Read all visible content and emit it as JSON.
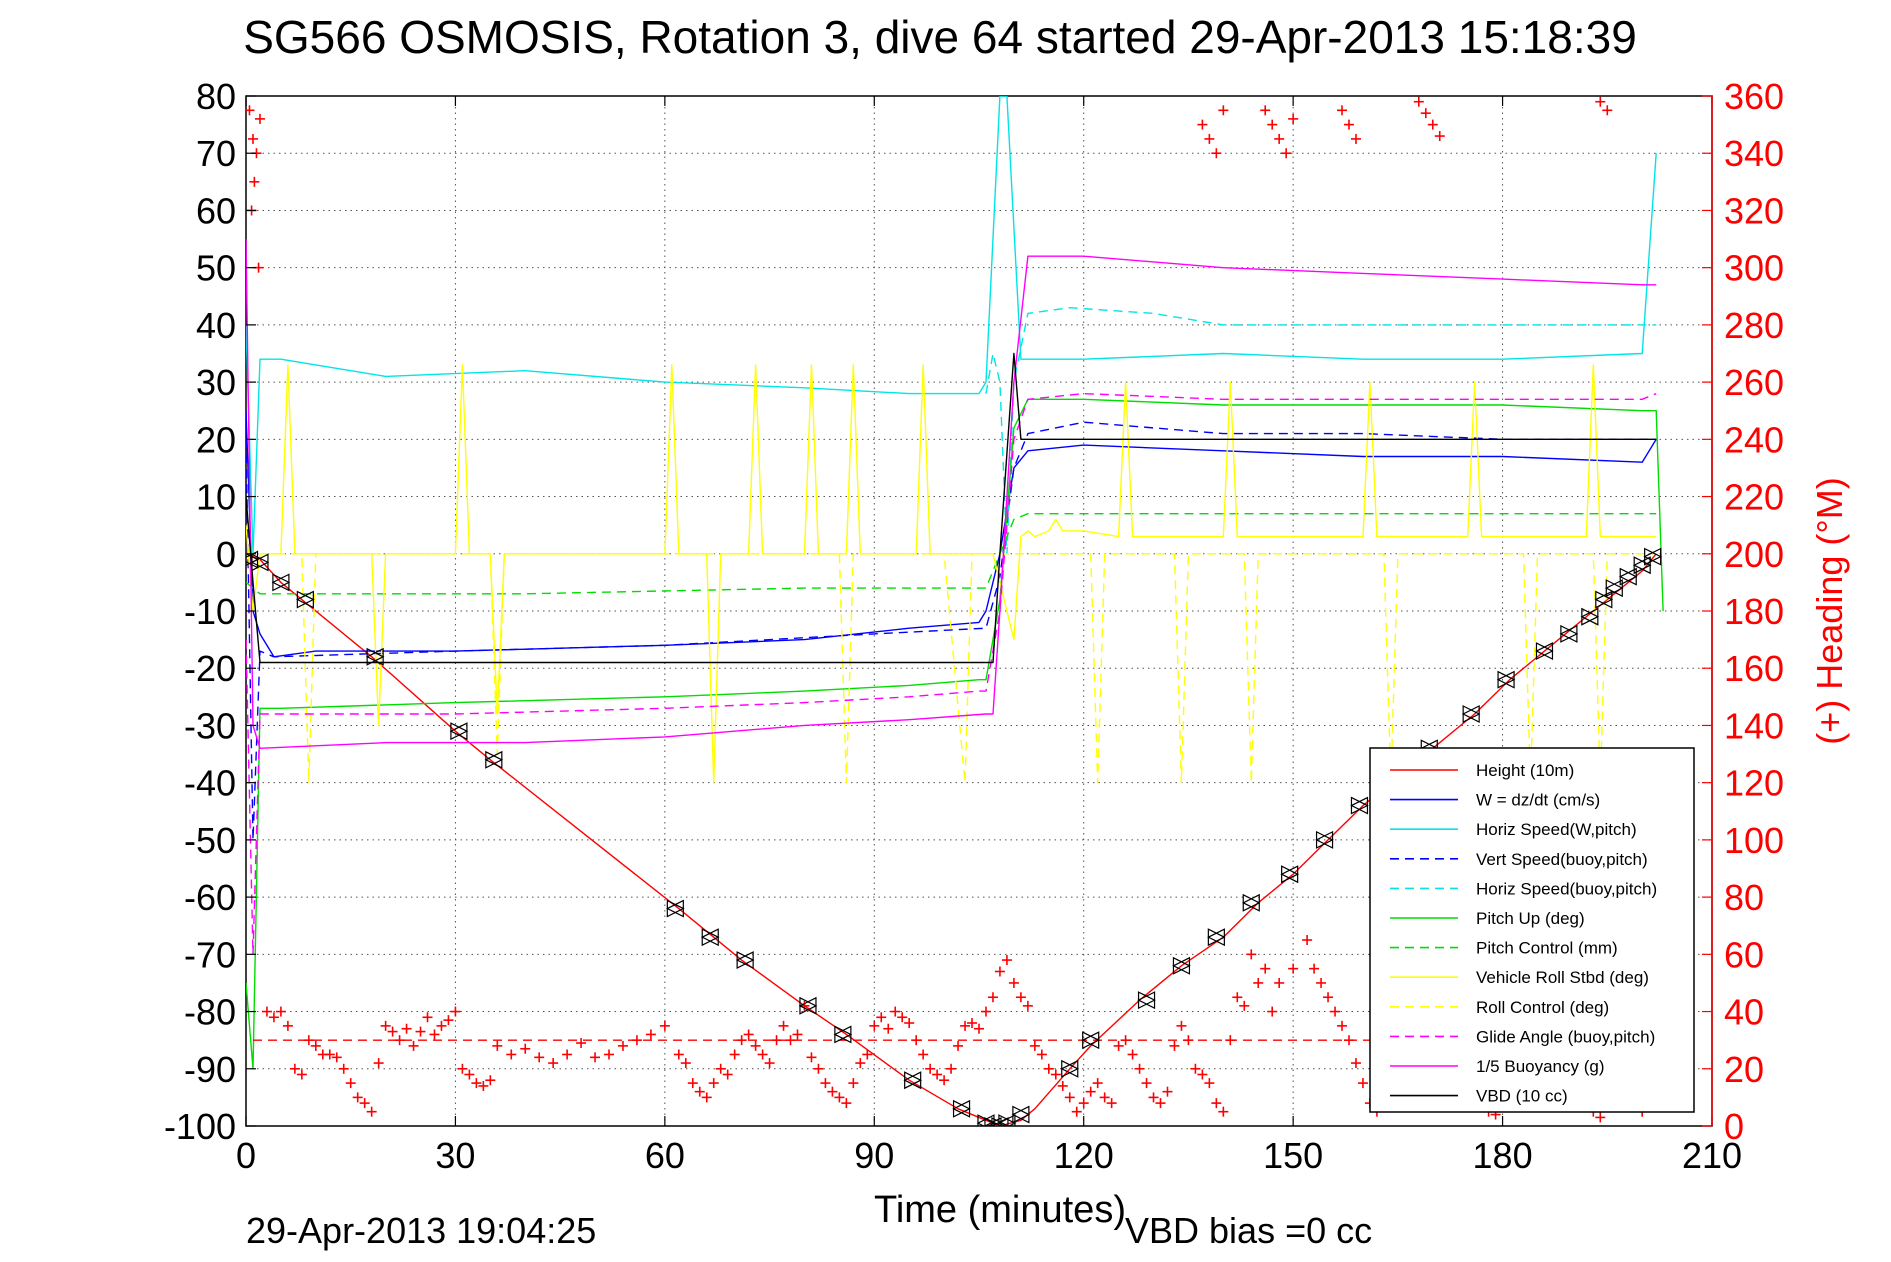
{
  "chart_data": {
    "type": "line",
    "title": "SG566 OSMOSIS, Rotation 3, dive 64 started 29-Apr-2013 15:18:39",
    "xlabel": "Time (minutes)",
    "ylabel_right": "(+) Heading (°M)",
    "footer_left": "29-Apr-2013 19:04:25",
    "footer_right": "VBD bias =0 cc",
    "xlim": [
      0,
      210
    ],
    "ylim_left": [
      -100,
      80
    ],
    "ylim_right": [
      0,
      360
    ],
    "xticks": [
      0,
      30,
      60,
      90,
      120,
      150,
      180,
      210
    ],
    "yticks_left": [
      80,
      70,
      60,
      50,
      40,
      30,
      20,
      10,
      0,
      -10,
      -20,
      -30,
      -40,
      -50,
      -60,
      -70,
      -80,
      -90,
      -100
    ],
    "yticks_right": [
      360,
      340,
      320,
      300,
      280,
      260,
      240,
      220,
      200,
      180,
      160,
      140,
      120,
      100,
      80,
      60,
      40,
      20,
      0
    ],
    "grid": true,
    "legend_position": "bottom-right",
    "colors": {
      "height": "#ff0000",
      "w": "#0000ff",
      "horiz_w": "#00e5e5",
      "vert_buoy": "#0000ff",
      "horiz_buoy": "#00e5e5",
      "pitch": "#00dd00",
      "pitch_ctrl": "#00dd00",
      "roll": "#ffff00",
      "roll_ctrl": "#ffff00",
      "glide": "#ff00ff",
      "buoyancy": "#ff00ff",
      "vbd": "#000000",
      "heading": "#ff0000",
      "right_axis": "#ff0000"
    },
    "series": [
      {
        "key": "height",
        "name": "Height (10m)",
        "style": "solid",
        "color": "#ff0000",
        "x": [
          0,
          2,
          5,
          8,
          18,
          30,
          35,
          62,
          67,
          71,
          80,
          86,
          95,
          102,
          106,
          108,
          111,
          113,
          118,
          121,
          128,
          134,
          140,
          145,
          150,
          155,
          160,
          170,
          176,
          181,
          186,
          189,
          193,
          195,
          198,
          200,
          202
        ],
        "y": [
          0,
          -1,
          -5,
          -8,
          -18,
          -31,
          -36,
          -62,
          -67,
          -71,
          -79,
          -84,
          -92,
          -97,
          -99,
          -100,
          -99,
          -97,
          -90,
          -86,
          -78,
          -72,
          -67,
          -61,
          -56,
          -50,
          -44,
          -34,
          -28,
          -22,
          -17,
          -14,
          -10,
          -8,
          -5,
          -3,
          0
        ]
      },
      {
        "key": "w",
        "name": "W = dz/dt (cm/s)",
        "style": "solid",
        "color": "#0000ff",
        "x": [
          0,
          1,
          2,
          4,
          10,
          30,
          60,
          80,
          95,
          105,
          106,
          108,
          110,
          112,
          120,
          140,
          160,
          180,
          200,
          202
        ],
        "y": [
          25,
          -10,
          -14,
          -18,
          -17,
          -17,
          -16,
          -15,
          -13,
          -12,
          -10,
          0,
          15,
          18,
          19,
          18,
          17,
          17,
          16,
          20
        ]
      },
      {
        "key": "horiz_w",
        "name": "Horiz Speed(W,pitch)",
        "style": "solid",
        "color": "#00e5e5",
        "x": [
          0,
          1,
          2,
          5,
          20,
          40,
          60,
          80,
          95,
          105,
          106,
          108,
          109,
          111,
          113,
          120,
          140,
          160,
          180,
          200,
          202
        ],
        "y": [
          40,
          0,
          34,
          34,
          31,
          32,
          30,
          29,
          28,
          28,
          30,
          80,
          80,
          34,
          34,
          34,
          35,
          34,
          34,
          35,
          70
        ]
      },
      {
        "key": "vert_buoy",
        "name": "Vert Speed(buoy,pitch)",
        "style": "dashed",
        "color": "#0000ff",
        "x": [
          0,
          1,
          2,
          4,
          30,
          60,
          90,
          106,
          108,
          110,
          112,
          120,
          140,
          160,
          180,
          200,
          202
        ],
        "y": [
          20,
          -50,
          -17,
          -18,
          -17,
          -16,
          -14,
          -13,
          -4,
          15,
          21,
          23,
          21,
          21,
          20,
          20,
          20
        ]
      },
      {
        "key": "horiz_buoy",
        "name": "Horiz Speed(buoy,pitch)",
        "style": "dashed",
        "color": "#00e5e5",
        "x": [
          106,
          107,
          108,
          109,
          110,
          112,
          118,
          130,
          140,
          160,
          180,
          200,
          202
        ],
        "y": [
          28,
          35,
          30,
          0,
          30,
          42,
          43,
          42,
          40,
          40,
          40,
          40,
          40
        ]
      },
      {
        "key": "pitch",
        "name": "Pitch Up (deg)",
        "style": "solid",
        "color": "#00dd00",
        "x": [
          0,
          1,
          2,
          5,
          30,
          60,
          80,
          95,
          105,
          106,
          108,
          110,
          112,
          120,
          140,
          160,
          180,
          200,
          202,
          203
        ],
        "y": [
          -75,
          -90,
          -27,
          -27,
          -26,
          -25,
          -24,
          -23,
          -22,
          -22,
          -8,
          22,
          27,
          27,
          26,
          26,
          26,
          25,
          25,
          -10
        ]
      },
      {
        "key": "pitch_ctrl",
        "name": "Pitch Control (mm)",
        "style": "dashed",
        "color": "#00dd00",
        "x": [
          0,
          2,
          5,
          40,
          80,
          106,
          108,
          110,
          112,
          140,
          180,
          202
        ],
        "y": [
          -5,
          -7,
          -7,
          -7,
          -6,
          -6,
          0,
          6,
          7,
          7,
          7,
          7
        ]
      },
      {
        "key": "roll",
        "name": "Vehicle Roll Stbd (deg)",
        "style": "solid",
        "color": "#ffff00",
        "x": [
          0,
          1,
          2,
          3,
          5,
          6,
          7,
          10,
          18,
          19,
          20,
          30,
          31,
          32,
          35,
          36,
          37,
          60,
          61,
          62,
          66,
          67,
          68,
          72,
          73,
          74,
          80,
          81,
          82,
          86,
          87,
          88,
          96,
          97,
          98,
          106,
          107,
          109,
          110,
          111,
          112,
          113,
          115,
          116,
          117,
          120,
          125,
          126,
          127,
          130,
          140,
          141,
          142,
          150,
          160,
          161,
          162,
          170,
          175,
          176,
          177,
          185,
          192,
          193,
          194,
          200,
          202
        ],
        "y": [
          5,
          -10,
          0,
          0,
          0,
          33,
          0,
          0,
          0,
          -30,
          0,
          0,
          33,
          0,
          0,
          -28,
          0,
          0,
          33,
          0,
          0,
          -40,
          0,
          0,
          33,
          0,
          0,
          33,
          0,
          0,
          33,
          0,
          0,
          33,
          0,
          0,
          0,
          -10,
          -15,
          3,
          4,
          3,
          4,
          6,
          4,
          4,
          3,
          30,
          3,
          3,
          3,
          30,
          3,
          3,
          3,
          30,
          3,
          3,
          3,
          30,
          3,
          3,
          3,
          33,
          3,
          3,
          3
        ]
      },
      {
        "key": "roll_ctrl",
        "name": "Roll Control (deg)",
        "style": "dashed",
        "color": "#ffff00",
        "x": [
          0,
          5,
          8,
          9,
          10,
          30,
          35,
          36,
          37,
          70,
          80,
          85,
          86,
          87,
          90,
          100,
          103,
          104,
          105,
          110,
          115,
          121,
          122,
          123,
          130,
          133,
          134,
          135,
          140,
          143,
          144,
          145,
          160,
          163,
          164,
          165,
          180,
          183,
          184,
          185,
          190,
          193,
          194,
          195,
          202
        ],
        "y": [
          0,
          0,
          0,
          -40,
          0,
          0,
          0,
          -35,
          0,
          0,
          0,
          0,
          -40,
          0,
          0,
          0,
          -40,
          0,
          0,
          0,
          0,
          0,
          -40,
          0,
          0,
          0,
          -40,
          0,
          0,
          0,
          -40,
          0,
          0,
          0,
          -40,
          0,
          0,
          0,
          -40,
          0,
          0,
          0,
          -40,
          0,
          0
        ]
      },
      {
        "key": "glide",
        "name": "Glide Angle (buoy,pitch)",
        "style": "dashed",
        "color": "#ff00ff",
        "x": [
          0,
          1,
          2,
          5,
          30,
          60,
          80,
          95,
          105,
          106,
          108,
          110,
          112,
          120,
          140,
          160,
          180,
          200,
          202
        ],
        "y": [
          -15,
          -70,
          -28,
          -28,
          -28,
          -27,
          -26,
          -25,
          -24,
          -24,
          -10,
          20,
          27,
          28,
          27,
          27,
          27,
          27,
          28
        ]
      },
      {
        "key": "buoyancy",
        "name": "1/5 Buoyancy (g)",
        "style": "solid",
        "color": "#ff00ff",
        "x": [
          0,
          1,
          2,
          20,
          40,
          60,
          80,
          95,
          106,
          107,
          108,
          110,
          112,
          120,
          140,
          160,
          180,
          200,
          202
        ],
        "y": [
          55,
          -30,
          -34,
          -33,
          -33,
          -32,
          -30,
          -29,
          -28,
          -28,
          -10,
          30,
          52,
          52,
          50,
          49,
          48,
          47,
          47
        ]
      },
      {
        "key": "vbd",
        "name": "VBD (10 cc)",
        "style": "solid",
        "color": "#000000",
        "x": [
          0,
          1,
          2,
          30,
          60,
          90,
          106,
          107,
          108,
          110,
          111,
          112,
          140,
          160,
          180,
          200,
          202
        ],
        "y": [
          10,
          -5,
          -19,
          -19,
          -19,
          -19,
          -19,
          -19,
          0,
          35,
          20,
          20,
          20,
          20,
          20,
          20,
          20
        ]
      }
    ],
    "heading": {
      "name": "(+) Heading (°M)",
      "axis": "right",
      "color": "#ff0000",
      "mean": 30,
      "x": [
        0.5,
        1,
        1.5,
        2,
        1.2,
        0.8,
        1.8,
        3,
        4,
        5,
        6,
        7,
        8,
        9,
        10,
        11,
        12,
        13,
        14,
        15,
        16,
        17,
        18,
        19,
        20,
        21,
        22,
        23,
        24,
        25,
        26,
        27,
        28,
        29,
        30,
        31,
        32,
        33,
        34,
        35,
        36,
        38,
        40,
        42,
        44,
        46,
        48,
        50,
        52,
        54,
        56,
        58,
        60,
        62,
        63,
        64,
        65,
        66,
        67,
        68,
        69,
        70,
        71,
        72,
        73,
        74,
        75,
        76,
        77,
        78,
        79,
        80,
        81,
        82,
        83,
        84,
        85,
        86,
        87,
        88,
        89,
        90,
        91,
        92,
        93,
        94,
        95,
        96,
        97,
        98,
        99,
        100,
        101,
        102,
        103,
        104,
        105,
        106,
        107,
        108,
        109,
        110,
        111,
        112,
        113,
        114,
        115,
        116,
        117,
        118,
        119,
        120,
        121,
        122,
        123,
        124,
        125,
        126,
        127,
        128,
        129,
        130,
        131,
        132,
        133,
        134,
        135,
        136,
        137,
        138,
        139,
        140,
        141,
        142,
        143,
        144,
        145,
        146,
        147,
        148,
        150,
        152,
        153,
        154,
        155,
        156,
        157,
        158,
        159,
        160,
        161,
        162,
        163,
        164,
        165,
        166,
        167,
        168,
        169,
        170,
        171,
        172,
        173,
        174,
        175,
        176,
        177,
        178,
        179,
        180,
        181,
        182,
        183,
        184,
        185,
        186,
        187,
        188,
        189,
        190,
        191,
        192,
        193,
        194,
        195,
        196,
        197,
        198,
        199,
        200,
        201,
        202,
        137,
        138,
        139,
        140,
        146,
        147,
        148,
        149,
        150,
        157,
        158,
        159,
        168,
        169,
        170,
        171,
        194,
        195
      ],
      "y": [
        355,
        345,
        340,
        352,
        330,
        320,
        300,
        40,
        38,
        40,
        35,
        20,
        18,
        30,
        28,
        25,
        25,
        24,
        20,
        15,
        10,
        8,
        5,
        22,
        35,
        33,
        30,
        34,
        28,
        33,
        38,
        32,
        35,
        37,
        40,
        20,
        18,
        15,
        14,
        16,
        28,
        25,
        27,
        24,
        22,
        25,
        29,
        24,
        25,
        28,
        30,
        32,
        35,
        25,
        22,
        15,
        12,
        10,
        15,
        20,
        18,
        25,
        30,
        32,
        28,
        25,
        22,
        30,
        35,
        30,
        32,
        42,
        24,
        20,
        15,
        12,
        10,
        8,
        15,
        22,
        25,
        35,
        38,
        34,
        40,
        38,
        36,
        30,
        25,
        20,
        18,
        16,
        20,
        28,
        35,
        36,
        34,
        40,
        45,
        54,
        58,
        50,
        45,
        42,
        28,
        25,
        20,
        18,
        14,
        10,
        5,
        8,
        12,
        15,
        10,
        8,
        28,
        30,
        25,
        20,
        15,
        10,
        8,
        12,
        28,
        35,
        30,
        20,
        18,
        15,
        8,
        5,
        30,
        45,
        42,
        60,
        50,
        55,
        40,
        50,
        55,
        65,
        55,
        50,
        45,
        40,
        35,
        30,
        22,
        15,
        8,
        5,
        25,
        45,
        55,
        60,
        25,
        20,
        15,
        10,
        8,
        20,
        30,
        25,
        15,
        10,
        8,
        5,
        4,
        20,
        25,
        30,
        28,
        35,
        40,
        30,
        20,
        18,
        15,
        12,
        10,
        8,
        5,
        3,
        12,
        18,
        20,
        10,
        8,
        5,
        15,
        20,
        350,
        345,
        340,
        355,
        355,
        350,
        345,
        340,
        352,
        355,
        350,
        345,
        358,
        354,
        350,
        346,
        358,
        355
      ]
    },
    "dive_markers": {
      "x": [
        0.5,
        2,
        5,
        8.5,
        18.5,
        30.5,
        35.5,
        61.5,
        66.5,
        71.5,
        80.5,
        85.5,
        95.5,
        102.5,
        106,
        107,
        108,
        109,
        111,
        118,
        121,
        129,
        134,
        139,
        144,
        149.5,
        154.5,
        159.5,
        169.5,
        175.5,
        180.5,
        186,
        189.5,
        192.5,
        194.5,
        196,
        198,
        200,
        201.5
      ],
      "y": [
        -1,
        -1.5,
        -5,
        -8,
        -18,
        -31,
        -36,
        -62,
        -67,
        -71,
        -79,
        -84,
        -92,
        -97,
        -99.5,
        -100,
        -100,
        -99.5,
        -98,
        -90,
        -85,
        -78,
        -72,
        -67,
        -61,
        -56,
        -50,
        -44,
        -34,
        -28,
        -22,
        -17,
        -14,
        -11,
        -8,
        -6,
        -4,
        -2,
        -0.5
      ]
    }
  }
}
